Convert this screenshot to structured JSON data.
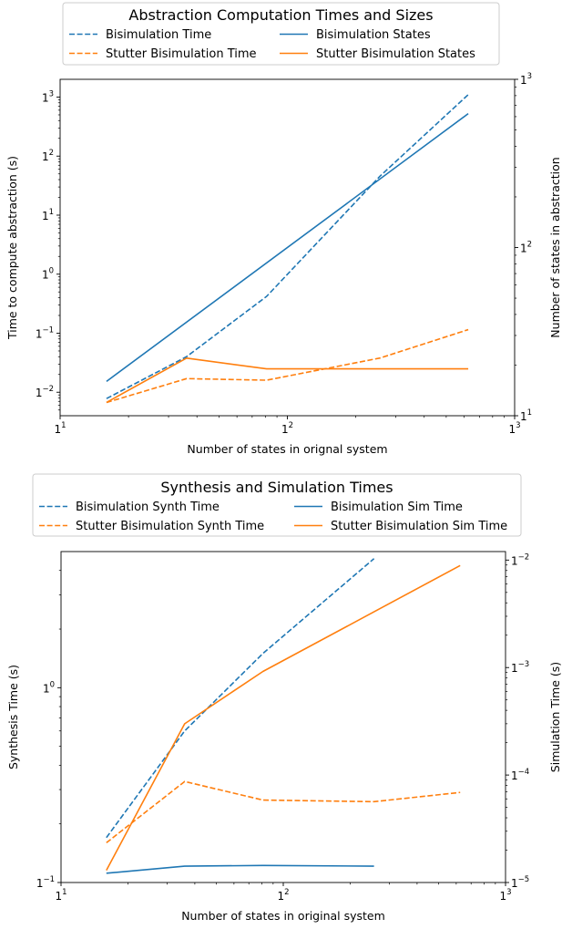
{
  "colors": {
    "blue": "#1f77b4",
    "orange": "#ff7f0e"
  },
  "chart_data": [
    {
      "type": "line",
      "title": "Abstraction Computation Times and Sizes",
      "xlabel": "Number of states in orignal system",
      "ylabel_left": "Time to compute abstraction (s)",
      "ylabel_right": "Number of states in abstraction",
      "xscale": "log",
      "yscale_left": "log",
      "yscale_right": "log",
      "xlim": [
        10,
        1000
      ],
      "ylim_left": [
        0.004,
        2000
      ],
      "ylim_right": [
        10,
        1000
      ],
      "x_ticks": [
        {
          "v": 10,
          "m": "1",
          "e": "1"
        },
        {
          "v": 100,
          "m": "1",
          "e": "2"
        },
        {
          "v": 1000,
          "m": "1",
          "e": "3"
        }
      ],
      "y_ticks_left": [
        {
          "v": 0.01,
          "m": "1",
          "e": "−2"
        },
        {
          "v": 0.1,
          "m": "1",
          "e": "−1"
        },
        {
          "v": 1,
          "m": "1",
          "e": "0"
        },
        {
          "v": 10,
          "m": "1",
          "e": "1"
        },
        {
          "v": 100,
          "m": "1",
          "e": "2"
        },
        {
          "v": 1000,
          "m": "1",
          "e": "3"
        }
      ],
      "y_ticks_right": [
        {
          "v": 10,
          "m": "1",
          "e": "1"
        },
        {
          "v": 100,
          "m": "1",
          "e": "2"
        },
        {
          "v": 1000,
          "m": "1",
          "e": "3"
        }
      ],
      "legend": {
        "placement": "above",
        "columns": 2
      },
      "series": [
        {
          "name": "Bisimulation Time",
          "axis": "left",
          "style": "dashed",
          "color": "#1f77b4",
          "x": [
            16,
            36,
            81,
            256,
            625
          ],
          "y": [
            0.0078,
            0.04,
            0.42,
            46,
            1100
          ]
        },
        {
          "name": "Stutter Bisimulation Time",
          "axis": "left",
          "style": "dashed",
          "color": "#ff7f0e",
          "x": [
            16,
            36,
            81,
            256,
            625
          ],
          "y": [
            0.0067,
            0.017,
            0.016,
            0.038,
            0.115
          ]
        },
        {
          "name": "Bisimulation States",
          "axis": "right",
          "style": "solid",
          "color": "#1f77b4",
          "x": [
            16,
            625
          ],
          "y": [
            16,
            625
          ]
        },
        {
          "name": "Stutter Bisimulation States",
          "axis": "right",
          "style": "solid",
          "color": "#ff7f0e",
          "x": [
            16,
            36,
            81,
            625
          ],
          "y": [
            12,
            22,
            19,
            19
          ]
        }
      ]
    },
    {
      "type": "line",
      "title": "Synthesis and Simulation Times",
      "xlabel": "Number of states in original system",
      "ylabel_left": "Synthesis Time (s)",
      "ylabel_right": "Simulation Time (s)",
      "xscale": "log",
      "yscale_left": "log",
      "yscale_right": "log",
      "xlim": [
        10,
        1000
      ],
      "ylim_left": [
        0.1,
        5
      ],
      "ylim_right": [
        1e-05,
        0.012
      ],
      "x_ticks": [
        {
          "v": 10,
          "m": "1",
          "e": "1"
        },
        {
          "v": 100,
          "m": "1",
          "e": "2"
        },
        {
          "v": 1000,
          "m": "1",
          "e": "3"
        }
      ],
      "y_ticks_left": [
        {
          "v": 0.1,
          "m": "1",
          "e": "−1"
        },
        {
          "v": 1,
          "m": "1",
          "e": "0"
        }
      ],
      "y_ticks_right": [
        {
          "v": 1e-05,
          "m": "1",
          "e": "−5"
        },
        {
          "v": 0.0001,
          "m": "1",
          "e": "−4"
        },
        {
          "v": 0.001,
          "m": "1",
          "e": "−3"
        },
        {
          "v": 0.01,
          "m": "1",
          "e": "−2"
        }
      ],
      "legend": {
        "placement": "above",
        "columns": 2
      },
      "series": [
        {
          "name": "Bisimulation Synth Time",
          "axis": "left",
          "style": "dashed",
          "color": "#1f77b4",
          "x": [
            16,
            36,
            81,
            256
          ],
          "y": [
            0.17,
            0.6,
            1.5,
            4.6
          ]
        },
        {
          "name": "Stutter Bisimulation Synth Time",
          "axis": "left",
          "style": "dashed",
          "color": "#ff7f0e",
          "x": [
            16,
            36,
            81,
            256,
            625
          ],
          "y": [
            0.16,
            0.33,
            0.265,
            0.26,
            0.29
          ]
        },
        {
          "name": "Bisimulation Sim Time",
          "axis": "right",
          "style": "solid",
          "color": "#1f77b4",
          "x": [
            16,
            36,
            81,
            256
          ],
          "y": [
            1.22e-05,
            1.42e-05,
            1.44e-05,
            1.42e-05
          ]
        },
        {
          "name": "Stutter Bisimulation Sim Time",
          "axis": "right",
          "style": "solid",
          "color": "#ff7f0e",
          "x": [
            16,
            36,
            81,
            256,
            625
          ],
          "y": [
            1.3e-05,
            0.0003,
            0.00092,
            0.0033,
            0.0089
          ]
        }
      ]
    }
  ]
}
